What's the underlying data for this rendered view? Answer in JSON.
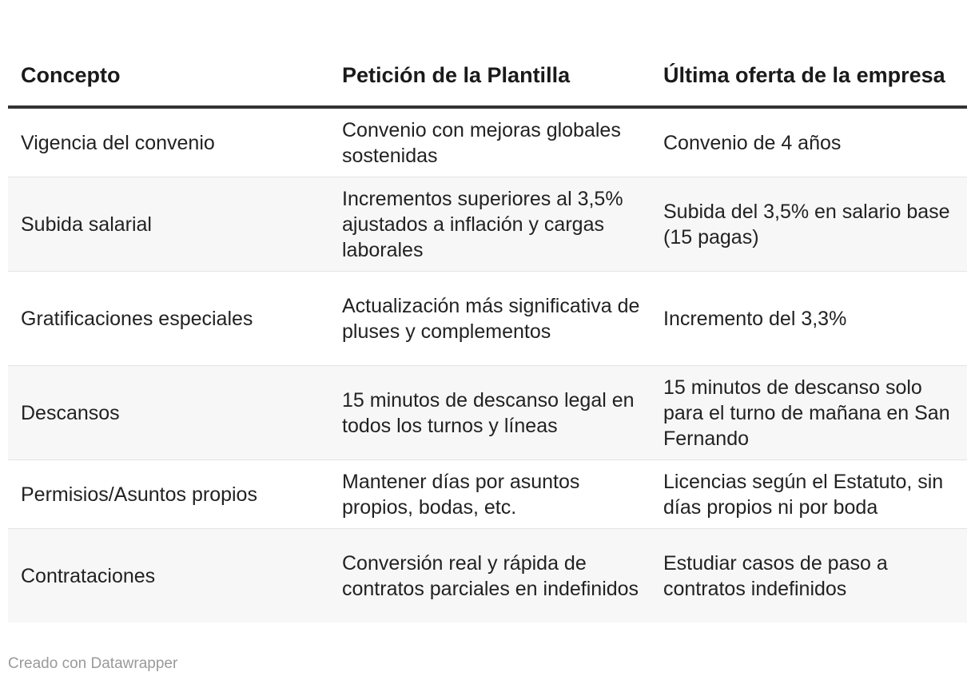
{
  "table": {
    "headers": [
      "Concepto",
      "Petición de la Plantilla",
      "Última oferta de la empresa"
    ],
    "rows": [
      [
        "Vigencia del convenio",
        "Convenio con mejoras globales sostenidas",
        "Convenio de 4 años"
      ],
      [
        "Subida salarial",
        "Incrementos superiores al 3,5% ajustados a inflación y cargas laborales",
        "Subida del 3,5% en salario base (15 pagas)"
      ],
      [
        "Gratificaciones especiales",
        "Actualización más significativa de pluses y complementos",
        "Incremento del 3,3%"
      ],
      [
        "Descansos",
        "15 minutos de descanso legal en todos los turnos y líneas",
        "15 minutos de descanso solo para el turno de mañana en San Fernando"
      ],
      [
        "Permisios/Asuntos propios",
        "Mantener días por asuntos propios, bodas, etc.",
        "Licencias según el Estatuto, sin días propios ni por boda"
      ],
      [
        "Contrataciones",
        "Conversión real y rápida de contratos parciales en indefinidos",
        "Estudiar casos de paso a contratos indefinidos"
      ]
    ]
  },
  "footer": {
    "credit": "Creado con Datawrapper"
  },
  "colors": {
    "header_rule": "#333333",
    "row_alt_bg": "#f7f7f7",
    "row_divider": "#e4e4e4",
    "footer_text": "#9a9a9a"
  }
}
